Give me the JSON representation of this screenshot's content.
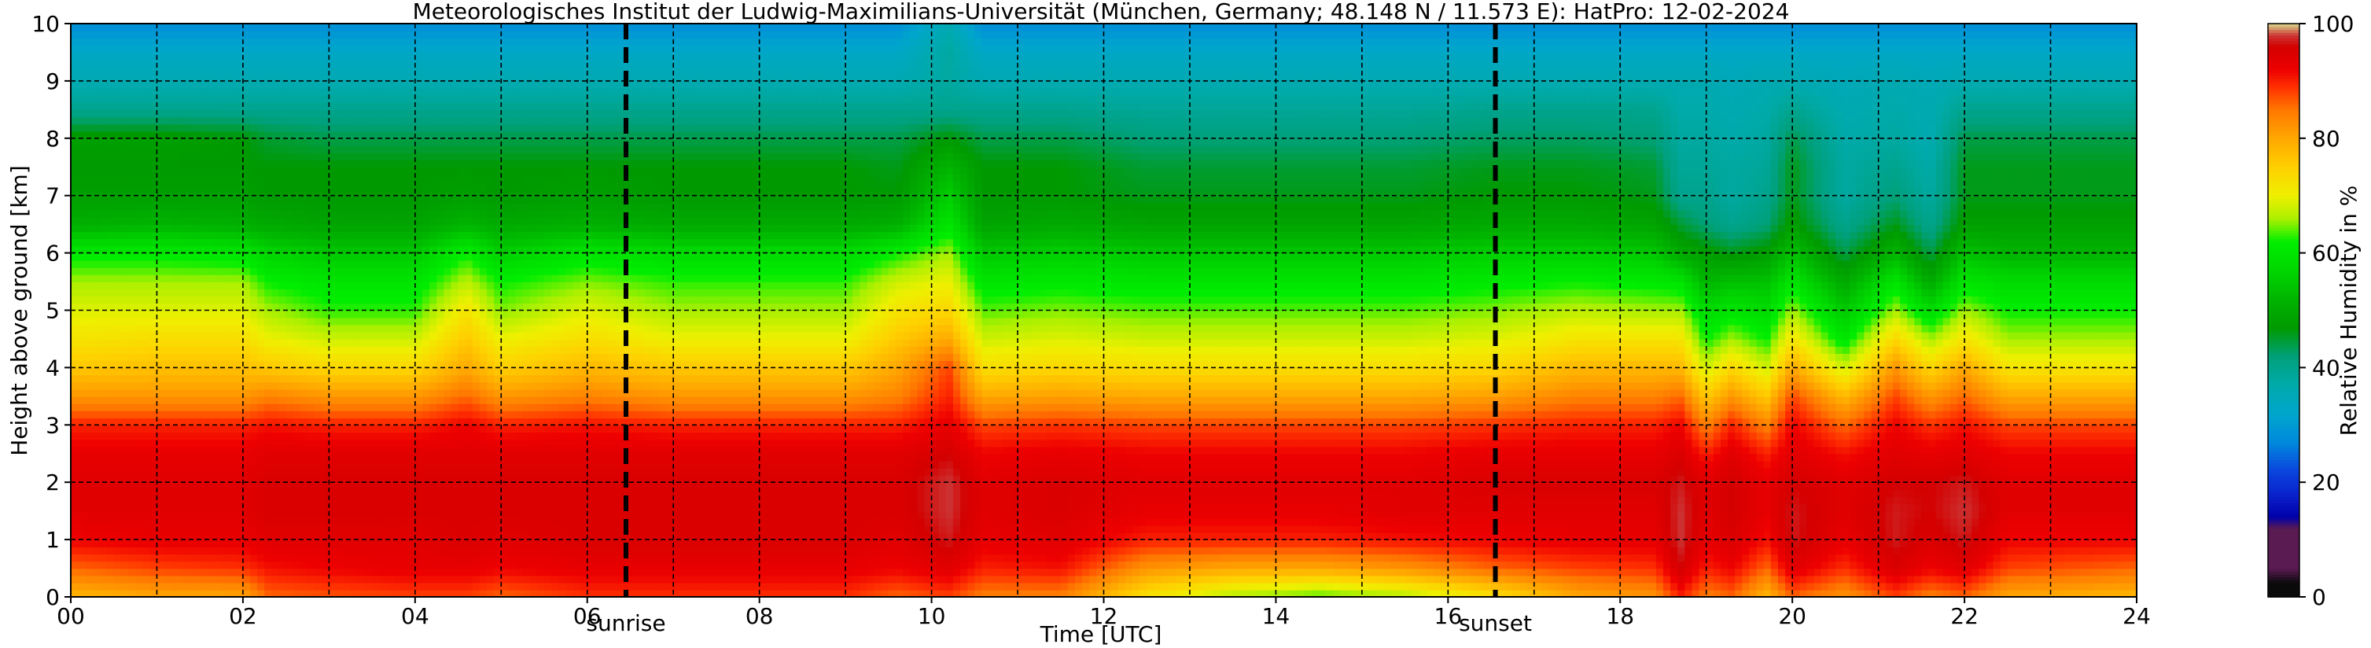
{
  "chart_data": {
    "type": "heatmap",
    "title": "Meteorologisches Institut der Ludwig-Maximilians-Universität (München, Germany; 48.148 N / 11.573 E):    HatPro: 12-02-2024",
    "xlabel": "Time [UTC]",
    "ylabel": "Height above ground [km]",
    "colorbar_label": "Relative Humidity in %",
    "xlim": [
      0,
      24
    ],
    "ylim": [
      0,
      10
    ],
    "clim": [
      0,
      100
    ],
    "x_ticks": [
      0,
      2,
      4,
      6,
      8,
      10,
      12,
      14,
      16,
      18,
      20,
      22,
      24
    ],
    "x_tick_labels": [
      "00",
      "02",
      "04",
      "06",
      "08",
      "10",
      "12",
      "14",
      "16",
      "18",
      "20",
      "22",
      "24"
    ],
    "y_ticks": [
      0,
      1,
      2,
      3,
      4,
      5,
      6,
      7,
      8,
      9,
      10
    ],
    "y_tick_labels": [
      "0",
      "1",
      "2",
      "3",
      "4",
      "5",
      "6",
      "7",
      "8",
      "9",
      "10"
    ],
    "colorbar_ticks": [
      0,
      20,
      40,
      60,
      80,
      100
    ],
    "colorbar_tick_labels": [
      "0",
      "20",
      "40",
      "60",
      "80",
      "100"
    ],
    "grid": true,
    "events": [
      {
        "label": "sunrise",
        "time": 6.45
      },
      {
        "label": "sunset",
        "time": 16.55
      }
    ],
    "colormap": [
      [
        0,
        "#0a0a0a"
      ],
      [
        2.5,
        "#0a0a0a"
      ],
      [
        5,
        "#5a1a52"
      ],
      [
        12,
        "#5a1a52"
      ],
      [
        14,
        "#0000aa"
      ],
      [
        18,
        "#0a22cc"
      ],
      [
        22,
        "#0a44dd"
      ],
      [
        27,
        "#0088dd"
      ],
      [
        32,
        "#00a6cc"
      ],
      [
        37,
        "#00aaaa"
      ],
      [
        42,
        "#00a07a"
      ],
      [
        47,
        "#009a00"
      ],
      [
        52,
        "#00b400"
      ],
      [
        57,
        "#00d600"
      ],
      [
        62,
        "#00ee00"
      ],
      [
        66,
        "#aaf000"
      ],
      [
        70,
        "#eef000"
      ],
      [
        75,
        "#ffd000"
      ],
      [
        80,
        "#ffa800"
      ],
      [
        85,
        "#ff7800"
      ],
      [
        89,
        "#ff3000"
      ],
      [
        92,
        "#ee0000"
      ],
      [
        96,
        "#d40000"
      ],
      [
        98,
        "#cc3333"
      ],
      [
        100,
        "#d9d98c"
      ]
    ],
    "humidity_profiles": {
      "heights_km": [
        0,
        0.5,
        1,
        1.5,
        2,
        2.5,
        3,
        3.5,
        4,
        4.5,
        5,
        5.5,
        6,
        6.5,
        7,
        7.5,
        8,
        8.5,
        9,
        9.5,
        10
      ],
      "profiles": [
        {
          "time": 0.0,
          "rh": [
            78,
            86,
            92,
            94,
            94,
            93,
            90,
            82,
            76,
            72,
            69,
            66,
            61,
            51,
            48,
            47,
            48,
            40,
            36,
            33,
            28
          ]
        },
        {
          "time": 1.0,
          "rh": [
            80,
            88,
            93,
            94,
            94,
            93,
            90,
            82,
            77,
            73,
            69,
            66,
            61,
            52,
            48,
            47,
            48,
            40,
            36,
            33,
            28
          ]
        },
        {
          "time": 2.0,
          "rh": [
            80,
            89,
            93,
            94,
            94,
            93,
            90,
            82,
            77,
            73,
            69,
            66,
            60,
            51,
            48,
            47,
            47,
            40,
            36,
            33,
            28
          ]
        },
        {
          "time": 2.3,
          "rh": [
            86,
            91,
            94,
            95,
            95,
            94,
            91,
            84,
            76,
            70,
            66,
            62,
            57,
            50,
            47,
            47,
            45,
            40,
            36,
            33,
            28
          ]
        },
        {
          "time": 3.0,
          "rh": [
            87,
            92,
            94,
            95,
            95,
            94,
            90,
            82,
            74,
            68,
            63,
            60,
            55,
            49,
            47,
            47,
            44,
            40,
            36,
            33,
            28
          ]
        },
        {
          "time": 4.0,
          "rh": [
            88,
            93,
            94,
            95,
            95,
            94,
            90,
            82,
            74,
            68,
            63,
            60,
            55,
            49,
            47,
            47,
            44,
            40,
            36,
            33,
            28
          ]
        },
        {
          "time": 4.6,
          "rh": [
            88,
            93,
            95,
            95,
            95,
            94,
            92,
            86,
            80,
            76,
            72,
            67,
            62,
            52,
            48,
            47,
            44,
            40,
            36,
            33,
            28
          ]
        },
        {
          "time": 5.0,
          "rh": [
            86,
            92,
            94,
            95,
            95,
            94,
            90,
            82,
            75,
            70,
            65,
            62,
            56,
            50,
            47,
            47,
            44,
            40,
            36,
            33,
            28
          ]
        },
        {
          "time": 6.0,
          "rh": [
            89,
            93,
            95,
            95,
            95,
            94,
            91,
            84,
            78,
            73,
            69,
            65,
            60,
            51,
            48,
            47,
            44,
            40,
            36,
            33,
            28
          ]
        },
        {
          "time": 7.0,
          "rh": [
            89,
            93,
            95,
            95,
            95,
            94,
            90,
            82,
            76,
            70,
            66,
            63,
            58,
            50,
            47,
            47,
            44,
            40,
            36,
            33,
            28
          ]
        },
        {
          "time": 8.0,
          "rh": [
            89,
            93,
            95,
            95,
            95,
            94,
            90,
            82,
            76,
            70,
            66,
            63,
            58,
            50,
            47,
            47,
            44,
            40,
            36,
            33,
            28
          ]
        },
        {
          "time": 9.0,
          "rh": [
            89,
            93,
            95,
            95,
            95,
            94,
            90,
            82,
            76,
            70,
            66,
            63,
            58,
            50,
            47,
            47,
            44,
            40,
            36,
            33,
            28
          ]
        },
        {
          "time": 9.6,
          "rh": [
            86,
            92,
            94,
            95,
            95,
            94,
            90,
            84,
            80,
            76,
            72,
            68,
            62,
            51,
            47,
            46,
            44,
            40,
            36,
            33,
            28
          ]
        },
        {
          "time": 10.2,
          "rh": [
            88,
            94,
            97,
            98,
            98,
            96,
            93,
            90,
            88,
            80,
            74,
            70,
            66,
            60,
            56,
            52,
            47,
            40,
            38,
            38,
            36
          ]
        },
        {
          "time": 10.6,
          "rh": [
            84,
            90,
            93,
            94,
            94,
            92,
            88,
            80,
            73,
            68,
            64,
            60,
            55,
            49,
            47,
            47,
            44,
            40,
            36,
            33,
            28
          ]
        },
        {
          "time": 11.5,
          "rh": [
            84,
            91,
            94,
            95,
            95,
            93,
            89,
            81,
            74,
            69,
            65,
            61,
            56,
            50,
            47,
            47,
            44,
            40,
            36,
            33,
            28
          ]
        },
        {
          "time": 12.5,
          "rh": [
            72,
            82,
            90,
            93,
            94,
            92,
            88,
            80,
            73,
            68,
            64,
            60,
            55,
            49,
            46,
            45,
            42,
            39,
            36,
            33,
            28
          ]
        },
        {
          "time": 13.5,
          "rh": [
            66,
            80,
            90,
            93,
            94,
            92,
            88,
            80,
            73,
            68,
            64,
            60,
            55,
            49,
            46,
            45,
            42,
            39,
            36,
            33,
            28
          ]
        },
        {
          "time": 14.5,
          "rh": [
            63,
            80,
            90,
            93,
            94,
            92,
            88,
            80,
            73,
            68,
            64,
            60,
            55,
            49,
            46,
            45,
            42,
            39,
            36,
            33,
            28
          ]
        },
        {
          "time": 15.5,
          "rh": [
            66,
            82,
            91,
            94,
            94,
            92,
            88,
            80,
            73,
            68,
            64,
            60,
            55,
            49,
            46,
            45,
            42,
            39,
            36,
            33,
            28
          ]
        },
        {
          "time": 16.5,
          "rh": [
            72,
            86,
            92,
            94,
            95,
            93,
            89,
            81,
            74,
            69,
            65,
            61,
            56,
            50,
            47,
            46,
            43,
            40,
            36,
            33,
            28
          ]
        },
        {
          "time": 17.5,
          "rh": [
            80,
            88,
            93,
            94,
            95,
            93,
            90,
            84,
            78,
            72,
            67,
            62,
            56,
            50,
            47,
            46,
            43,
            40,
            36,
            33,
            28
          ]
        },
        {
          "time": 18.4,
          "rh": [
            82,
            89,
            93,
            94,
            95,
            93,
            90,
            84,
            78,
            72,
            66,
            61,
            55,
            49,
            46,
            45,
            42,
            40,
            36,
            33,
            28
          ]
        },
        {
          "time": 18.7,
          "rh": [
            90,
            96,
            98,
            98,
            97,
            95,
            92,
            86,
            78,
            72,
            66,
            60,
            50,
            45,
            40,
            39,
            38,
            37,
            36,
            33,
            28
          ]
        },
        {
          "time": 19.0,
          "rh": [
            84,
            90,
            93,
            94,
            94,
            90,
            84,
            76,
            68,
            62,
            58,
            52,
            48,
            42,
            40,
            39,
            38,
            37,
            36,
            33,
            28
          ]
        },
        {
          "time": 19.3,
          "rh": [
            86,
            92,
            95,
            96,
            96,
            94,
            90,
            82,
            74,
            66,
            60,
            54,
            46,
            40,
            38,
            38,
            37,
            36,
            35,
            33,
            28
          ]
        },
        {
          "time": 19.7,
          "rh": [
            78,
            86,
            91,
            93,
            93,
            90,
            84,
            76,
            68,
            62,
            58,
            54,
            48,
            42,
            40,
            39,
            38,
            37,
            36,
            33,
            28
          ]
        },
        {
          "time": 20.0,
          "rh": [
            86,
            94,
            97,
            97,
            96,
            94,
            92,
            88,
            80,
            72,
            66,
            60,
            54,
            48,
            46,
            46,
            44,
            40,
            36,
            33,
            28
          ]
        },
        {
          "time": 20.6,
          "rh": [
            82,
            89,
            93,
            94,
            94,
            91,
            86,
            78,
            68,
            60,
            55,
            50,
            44,
            40,
            38,
            38,
            37,
            36,
            35,
            33,
            28
          ]
        },
        {
          "time": 21.2,
          "rh": [
            88,
            95,
            97,
            97,
            96,
            94,
            92,
            88,
            82,
            74,
            66,
            60,
            52,
            46,
            42,
            40,
            38,
            37,
            36,
            33,
            28
          ]
        },
        {
          "time": 21.6,
          "rh": [
            84,
            92,
            95,
            96,
            96,
            93,
            89,
            82,
            74,
            66,
            58,
            50,
            44,
            40,
            38,
            37,
            36,
            36,
            35,
            33,
            28
          ]
        },
        {
          "time": 22.0,
          "rh": [
            86,
            94,
            97,
            98,
            97,
            94,
            91,
            86,
            80,
            72,
            66,
            60,
            54,
            48,
            46,
            46,
            44,
            40,
            36,
            33,
            28
          ]
        },
        {
          "time": 22.5,
          "rh": [
            80,
            88,
            92,
            94,
            94,
            92,
            88,
            80,
            72,
            66,
            62,
            58,
            52,
            48,
            46,
            46,
            44,
            40,
            36,
            33,
            28
          ]
        },
        {
          "time": 24.0,
          "rh": [
            78,
            86,
            92,
            94,
            94,
            92,
            88,
            80,
            72,
            66,
            62,
            58,
            52,
            48,
            46,
            46,
            44,
            40,
            36,
            33,
            28
          ]
        }
      ]
    }
  }
}
